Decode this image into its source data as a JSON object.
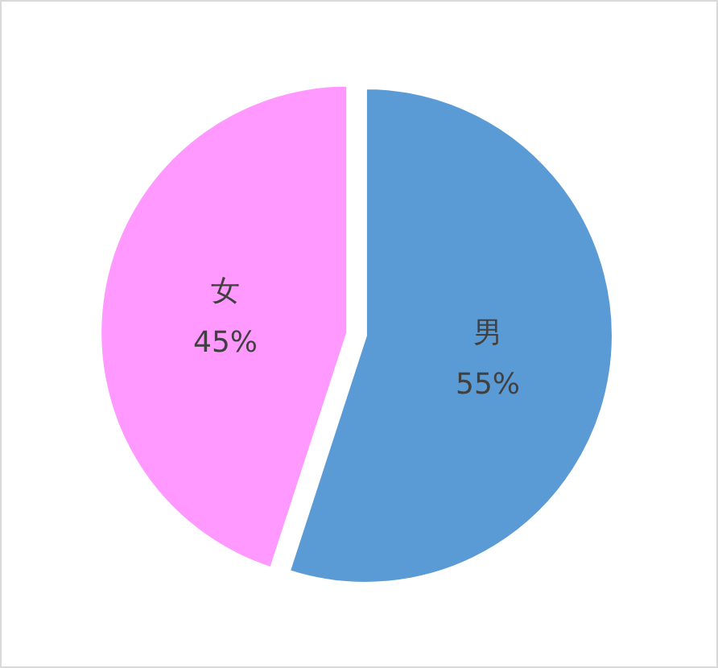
{
  "chart_data": {
    "type": "pie",
    "categories": [
      "男",
      "女"
    ],
    "values": [
      55,
      45
    ],
    "colors": [
      "#5b9bd5",
      "#ff99ff"
    ],
    "value_labels": [
      "55%",
      "45%"
    ]
  }
}
